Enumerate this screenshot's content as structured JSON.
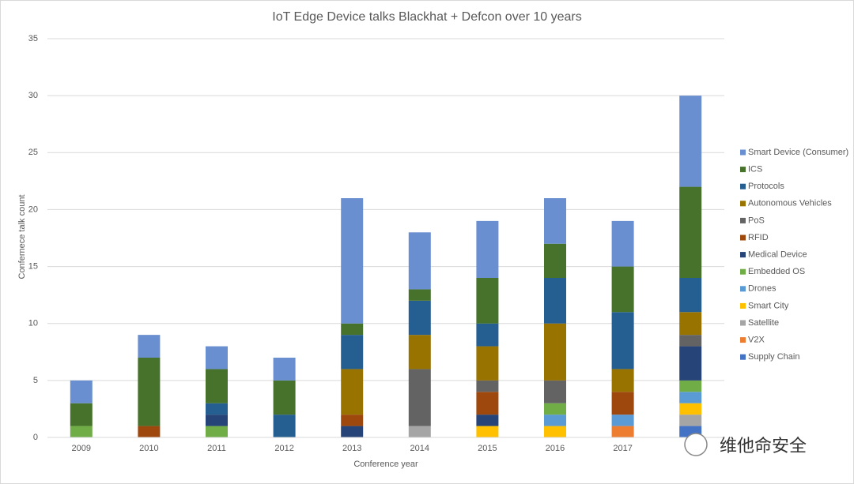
{
  "chart_data": {
    "type": "stacked_bar",
    "title": "IoT Edge Device talks Blackhat + Defcon over 10 years",
    "x_label": "Conference year",
    "y_label": "Confernece talk count",
    "categories": [
      "2009",
      "2010",
      "2011",
      "2012",
      "2013",
      "2014",
      "2015",
      "2016",
      "2017",
      null
    ],
    "ylim": [
      0,
      35
    ],
    "yticks": [
      0,
      5,
      10,
      15,
      20,
      25,
      30,
      35
    ],
    "grid": true,
    "legend": "right",
    "series": [
      {
        "name": "Smart Device (Consumer)",
        "color": "#6a8fd0",
        "values": [
          2,
          2,
          2,
          2,
          11,
          5,
          5,
          4,
          4,
          8
        ]
      },
      {
        "name": "ICS",
        "color": "#46722c",
        "values": [
          2,
          6,
          3,
          3,
          1,
          1,
          4,
          3,
          4,
          8
        ]
      },
      {
        "name": "Protocols",
        "color": "#255e91",
        "values": [
          0,
          0,
          1,
          2,
          3,
          3,
          2,
          4,
          5,
          3
        ]
      },
      {
        "name": "Autonomous Vehicles",
        "color": "#997300",
        "values": [
          0,
          0,
          0,
          0,
          4,
          3,
          3,
          5,
          2,
          2
        ]
      },
      {
        "name": "PoS",
        "color": "#636363",
        "values": [
          0,
          0,
          0,
          0,
          0,
          5,
          1,
          2,
          0,
          1
        ]
      },
      {
        "name": "RFID",
        "color": "#9e480e",
        "values": [
          0,
          1,
          0,
          0,
          1,
          0,
          2,
          0,
          2,
          0
        ]
      },
      {
        "name": "Medical Device",
        "color": "#264478",
        "values": [
          0,
          0,
          1,
          0,
          1,
          0,
          1,
          0,
          0,
          3
        ]
      },
      {
        "name": "Embedded OS",
        "color": "#70ad47",
        "values": [
          1,
          0,
          1,
          0,
          0,
          0,
          0,
          1,
          0,
          1
        ]
      },
      {
        "name": "Drones",
        "color": "#5b9bd5",
        "values": [
          0,
          0,
          0,
          0,
          0,
          0,
          0,
          1,
          1,
          1
        ]
      },
      {
        "name": "Smart City",
        "color": "#ffc000",
        "values": [
          0,
          0,
          0,
          0,
          0,
          0,
          1,
          1,
          0,
          1
        ]
      },
      {
        "name": "Satellite",
        "color": "#a5a5a5",
        "values": [
          0,
          0,
          0,
          0,
          0,
          1,
          0,
          0,
          0,
          1
        ]
      },
      {
        "name": "V2X",
        "color": "#ed7d31",
        "values": [
          0,
          0,
          0,
          0,
          0,
          0,
          0,
          0,
          1,
          0
        ]
      },
      {
        "name": "Supply Chain",
        "color": "#4472c4",
        "values": [
          0,
          0,
          0,
          0,
          0,
          0,
          0,
          0,
          0,
          1
        ]
      }
    ],
    "watermark": "维他命安全"
  }
}
